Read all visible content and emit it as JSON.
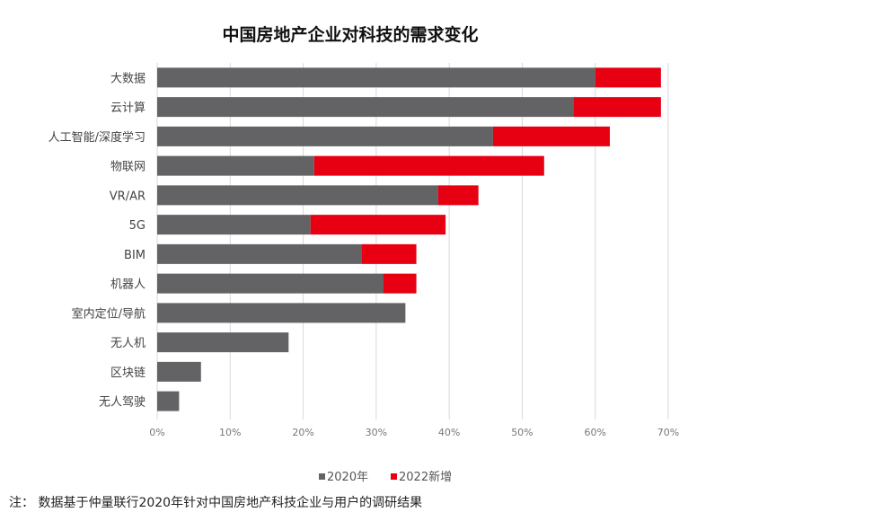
{
  "chart_data": {
    "type": "bar",
    "orientation": "horizontal",
    "stacked": true,
    "title": "中国房地产企业对科技的需求变化",
    "categories": [
      "大数据",
      "云计算",
      "人工智能/深度学习",
      "物联网",
      "VR/AR",
      "5G",
      "BIM",
      "机器人",
      "室内定位/导航",
      "无人机",
      "区块链",
      "无人驾驶"
    ],
    "series": [
      {
        "name": "2020年",
        "color": "#636366",
        "values": [
          60,
          57,
          46,
          21.5,
          38.5,
          21,
          28,
          31,
          34,
          18,
          6,
          3
        ]
      },
      {
        "name": "2022新增",
        "color": "#e60012",
        "values": [
          9,
          12,
          16,
          31.5,
          5.5,
          18.5,
          7.5,
          4.5,
          0,
          0,
          0,
          0
        ]
      }
    ],
    "xlim": [
      0,
      70
    ],
    "xticks": [
      "0%",
      "10%",
      "20%",
      "30%",
      "40%",
      "50%",
      "60%",
      "70%"
    ],
    "grid": true,
    "legend": "bottom"
  },
  "note": "注：  数据基于仲量联行2020年针对中国房地产科技企业与用户的调研结果"
}
